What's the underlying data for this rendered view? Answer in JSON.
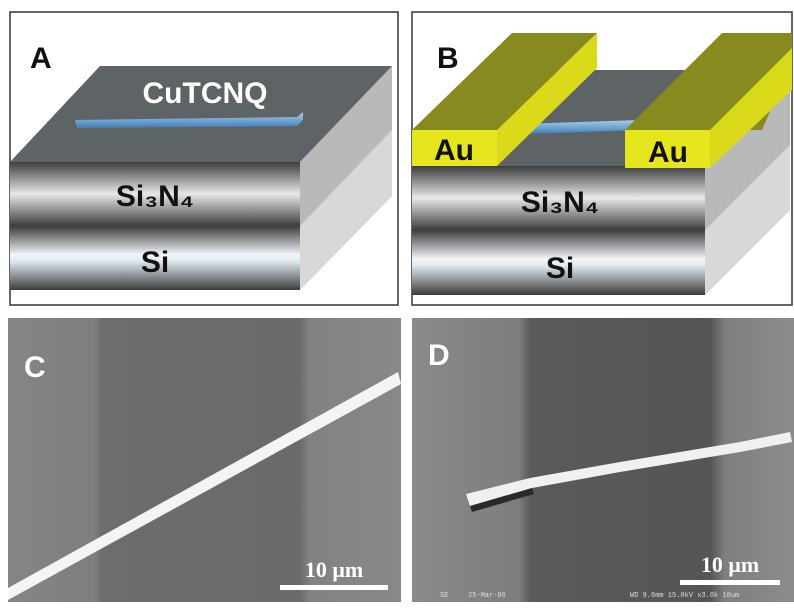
{
  "panels": [
    {
      "label": "A",
      "wire_label": "CuTCNQ",
      "layers": [
        "Si₃N₄",
        "Si"
      ]
    },
    {
      "label": "B",
      "electrodes": [
        "Au",
        "Au"
      ],
      "layers": [
        "Si₃N₄",
        "Si"
      ]
    },
    {
      "label": "C",
      "scale_bar": "10 μm"
    },
    {
      "label": "D",
      "scale_bar": "10 μm",
      "sem_info": [
        "SE",
        "25-Mar-06",
        "WD 9.6mm 15.0kV x3.0k 10um"
      ]
    }
  ]
}
